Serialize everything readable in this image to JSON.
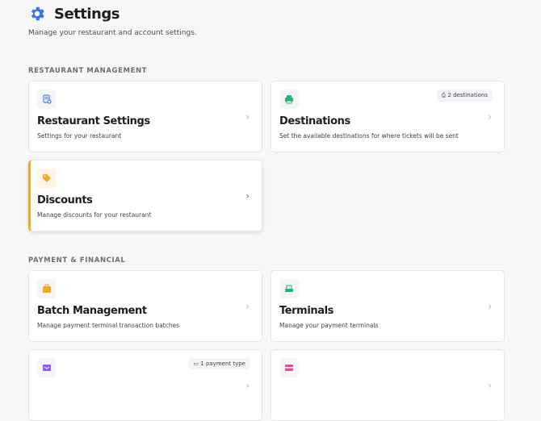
{
  "header": {
    "title": "Settings",
    "subtitle": "Manage your restaurant and account settings.",
    "icon": "gear-icon",
    "accent": "#3b6ff5"
  },
  "sections": [
    {
      "label": "RESTAURANT MANAGEMENT",
      "cards": [
        {
          "title": "Restaurant Settings",
          "description": "Settings for your restaurant",
          "icon": "document-settings-icon",
          "color": "#4f7cf0"
        },
        {
          "title": "Destinations",
          "description": "Set the available destinations for where tickets will be sent",
          "icon": "printer-icon",
          "color": "#22b573",
          "badge": "2 destinations"
        },
        {
          "title": "Discounts",
          "description": "Manage discounts for your restaurant",
          "icon": "tag-icon",
          "color": "#f5a623"
        }
      ]
    },
    {
      "label": "PAYMENT & FINANCIAL",
      "cards": [
        {
          "title": "Batch Management",
          "description": "Manage payment terminal transaction batches",
          "icon": "briefcase-icon",
          "color": "#f5a623"
        },
        {
          "title": "Terminals",
          "description": "Manage your payment terminals",
          "icon": "terminal-icon",
          "color": "#22b573"
        },
        {
          "title": "",
          "description": "",
          "icon": "wallet-icon",
          "color": "#8b5cf6",
          "badge": "1 payment type"
        },
        {
          "title": "",
          "description": "",
          "icon": "credit-card-icon",
          "color": "#ec4899"
        }
      ]
    }
  ]
}
